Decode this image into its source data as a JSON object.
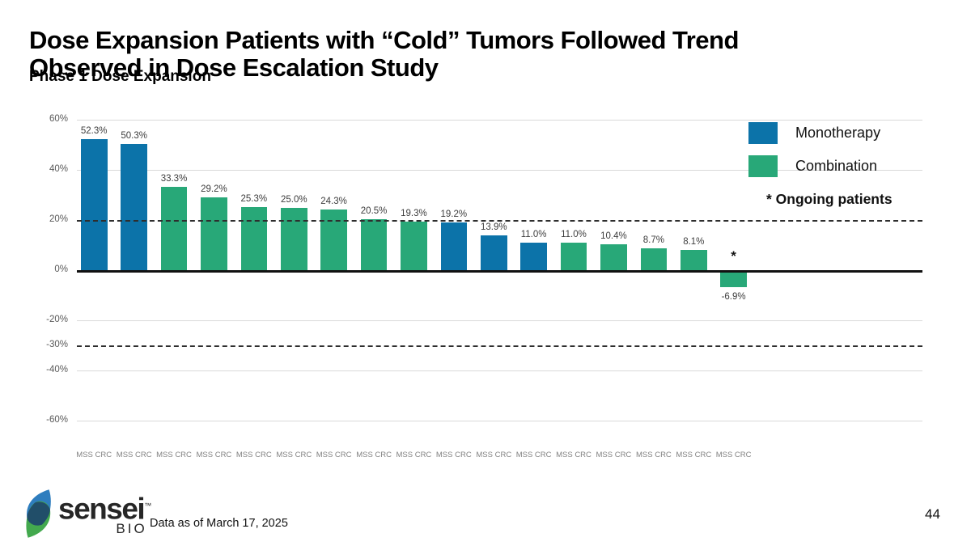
{
  "slide": {
    "title_line1": "Dose Expansion Patients with “Cold” Tumors Followed Trend",
    "title_line2": "Observed in Dose Escalation Study",
    "subtitle": "Phase 1 Dose Expansion",
    "footnote": "Data as of March 17, 2025",
    "page_number": "44"
  },
  "logo": {
    "brand": "sensei",
    "tm": "™",
    "sub_brand": "BIO"
  },
  "legend": {
    "items": [
      {
        "label": "Monotherapy",
        "color": "#0C73A9"
      },
      {
        "label": "Combination",
        "color": "#28A878"
      }
    ],
    "note": "* Ongoing patients"
  },
  "chart_data": {
    "type": "bar",
    "title": "",
    "xlabel": "",
    "ylabel": "",
    "ylim": [
      -60,
      60
    ],
    "grid": "horizontal",
    "legend_position": "top-right",
    "colors": {
      "Monotherapy": "#0C73A9",
      "Combination": "#28A878"
    },
    "yticks": [
      {
        "value": 60,
        "label": "60%",
        "line": "light"
      },
      {
        "value": 40,
        "label": "40%",
        "line": "light"
      },
      {
        "value": 20,
        "label": "20%",
        "line": "dashed"
      },
      {
        "value": 0,
        "label": "0%",
        "line": "solid"
      },
      {
        "value": -20,
        "label": "-20%",
        "line": "light"
      },
      {
        "value": -30,
        "label": "-30%",
        "line": "dashed"
      },
      {
        "value": -40,
        "label": "-40%",
        "line": "light"
      },
      {
        "value": -60,
        "label": "-60%",
        "line": "light"
      }
    ],
    "bars": [
      {
        "value": 52.3,
        "label": "52.3%",
        "group": "Monotherapy",
        "category": "MSS CRC"
      },
      {
        "value": 50.3,
        "label": "50.3%",
        "group": "Monotherapy",
        "category": "MSS CRC"
      },
      {
        "value": 33.3,
        "label": "33.3%",
        "group": "Combination",
        "category": "MSS CRC"
      },
      {
        "value": 29.2,
        "label": "29.2%",
        "group": "Combination",
        "category": "MSS CRC"
      },
      {
        "value": 25.3,
        "label": "25.3%",
        "group": "Combination",
        "category": "MSS CRC"
      },
      {
        "value": 25.0,
        "label": "25.0%",
        "group": "Combination",
        "category": "MSS CRC"
      },
      {
        "value": 24.3,
        "label": "24.3%",
        "group": "Combination",
        "category": "MSS CRC"
      },
      {
        "value": 20.5,
        "label": "20.5%",
        "group": "Combination",
        "category": "MSS CRC"
      },
      {
        "value": 19.3,
        "label": "19.3%",
        "group": "Combination",
        "category": "MSS CRC"
      },
      {
        "value": 19.2,
        "label": "19.2%",
        "group": "Monotherapy",
        "category": "MSS CRC"
      },
      {
        "value": 13.9,
        "label": "13.9%",
        "group": "Monotherapy",
        "category": "MSS CRC"
      },
      {
        "value": 11.0,
        "label": "11.0%",
        "group": "Monotherapy",
        "category": "MSS CRC"
      },
      {
        "value": 11.0,
        "label": "11.0%",
        "group": "Combination",
        "category": "MSS CRC"
      },
      {
        "value": 10.4,
        "label": "10.4%",
        "group": "Combination",
        "category": "MSS CRC"
      },
      {
        "value": 8.7,
        "label": "8.7%",
        "group": "Combination",
        "category": "MSS CRC"
      },
      {
        "value": 8.1,
        "label": "8.1%",
        "group": "Combination",
        "category": "MSS CRC"
      },
      {
        "value": -6.9,
        "label": "-6.9%",
        "group": "Combination",
        "category": "MSS CRC",
        "marker": "*"
      }
    ]
  }
}
